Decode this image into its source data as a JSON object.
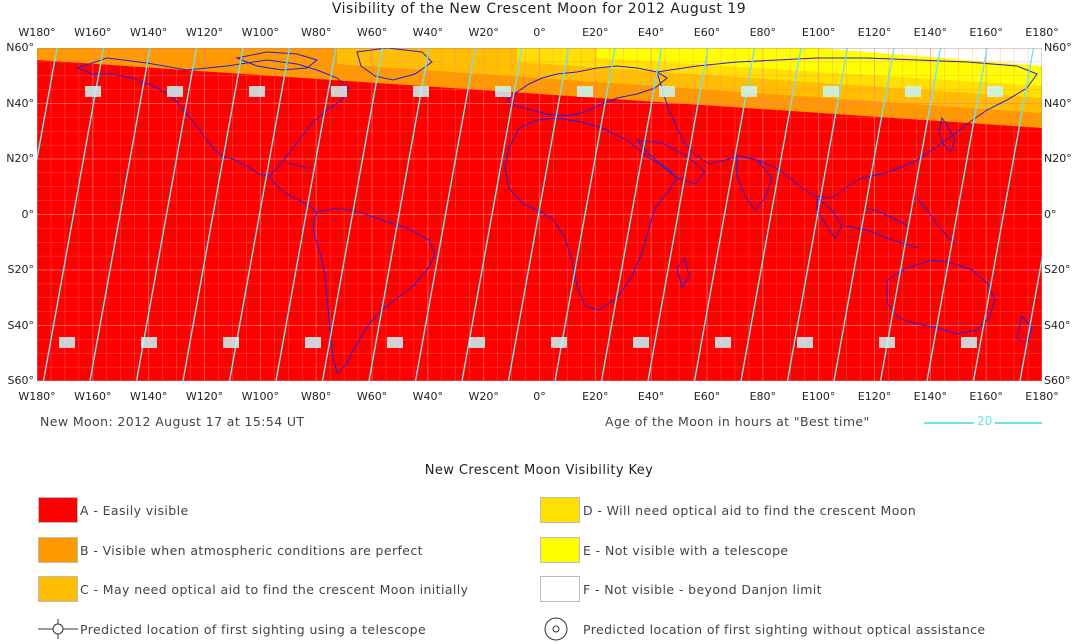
{
  "title": "Visibility of the New Crescent Moon for 2012 August 19",
  "lon_labels": [
    "W180°",
    "W160°",
    "W140°",
    "W120°",
    "W100°",
    "W80°",
    "W60°",
    "W40°",
    "W20°",
    "0°",
    "E20°",
    "E40°",
    "E60°",
    "E80°",
    "E100°",
    "E120°",
    "E140°",
    "E160°",
    "E180°"
  ],
  "lat_labels": [
    "N60°",
    "N40°",
    "N20°",
    "0°",
    "S20°",
    "S40°",
    "S60°"
  ],
  "colors": {
    "zone_a": "#ff0000",
    "zone_b": "#ff9900",
    "zone_c": "#ffbf00",
    "zone_d": "#ffe000",
    "zone_e": "#ffff00",
    "zone_f": "#ffffff",
    "grid": "#ff8080",
    "coast": "#2222dd",
    "age_lines": "#72e2e8"
  },
  "new_moon": "New Moon: 2012 August 17 at 15:54 UT",
  "age_caption": "Age of the Moon in hours at \"Best time\"",
  "age_legend_value": "20",
  "key": {
    "title": "New Crescent Moon Visibility Key",
    "items": [
      {
        "code": "A",
        "text": "A - Easily visible",
        "color": "#ff0000"
      },
      {
        "code": "B",
        "text": "B - Visible when atmospheric conditions are perfect",
        "color": "#ff9900"
      },
      {
        "code": "C",
        "text": "C - May need optical aid to find the crescent Moon initially",
        "color": "#ffbf00"
      },
      {
        "code": "D",
        "text": "D - Will need optical aid to find the crescent Moon",
        "color": "#ffe000"
      },
      {
        "code": "E",
        "text": "E - Not visible with a telescope",
        "color": "#ffff00"
      },
      {
        "code": "F",
        "text": "F - Not visible - beyond Danjon limit",
        "color": "#ffffff"
      }
    ],
    "telescope_text": "Predicted location of first sighting using a telescope",
    "naked_eye_text": "Predicted location of first sighting without optical assistance",
    "telescope_icon": "crosshair-circle-icon",
    "naked_eye_icon": "double-circle-icon"
  }
}
